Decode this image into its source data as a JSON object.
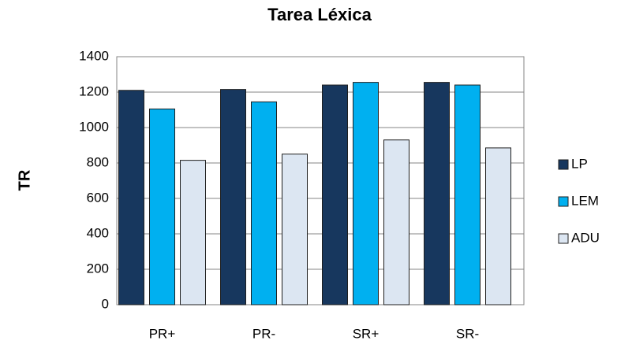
{
  "chart_data": {
    "type": "bar",
    "title": "Tarea Léxica",
    "y_label": "TR",
    "categories": [
      "PR+",
      "PR-",
      "SR+",
      "SR-"
    ],
    "series": [
      {
        "name": "LP",
        "color": "#17375e",
        "values": [
          1210,
          1215,
          1240,
          1255
        ]
      },
      {
        "name": "LEM",
        "color": "#00b0f0",
        "values": [
          1105,
          1145,
          1255,
          1240
        ]
      },
      {
        "name": "ADU",
        "color": "#dce6f2",
        "values": [
          815,
          850,
          930,
          885
        ]
      }
    ],
    "ylim": [
      0,
      1400
    ],
    "yticks": [
      0,
      200,
      400,
      600,
      800,
      1000,
      1200,
      1400
    ],
    "grid": true,
    "legend": "right"
  }
}
